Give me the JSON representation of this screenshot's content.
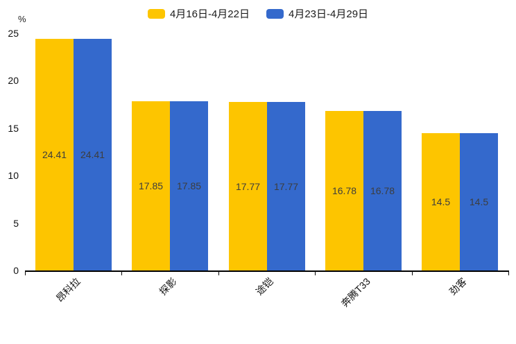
{
  "legend": [
    {
      "label": "4月16日-4月22日",
      "color": "#FDC500"
    },
    {
      "label": "4月23日-4月29日",
      "color": "#3469CC"
    }
  ],
  "y_axis": {
    "unit": "%",
    "ticks": [
      0,
      5,
      10,
      15,
      20,
      25
    ]
  },
  "chart_data": {
    "type": "bar",
    "categories": [
      "昂科拉",
      "探影",
      "途铠",
      "奔腾T33",
      "劲客"
    ],
    "series": [
      {
        "name": "4月16日-4月22日",
        "color": "#FDC500",
        "values": [
          24.41,
          17.85,
          17.77,
          16.78,
          14.5
        ]
      },
      {
        "name": "4月23日-4月29日",
        "color": "#3469CC",
        "values": [
          24.41,
          17.85,
          17.77,
          16.78,
          14.5
        ]
      }
    ],
    "title": "",
    "xlabel": "",
    "ylabel": "%",
    "ylim": [
      0,
      25
    ],
    "grid": false,
    "legend_position": "top",
    "value_labels": "inside-center",
    "xtick_rotation": 45
  }
}
